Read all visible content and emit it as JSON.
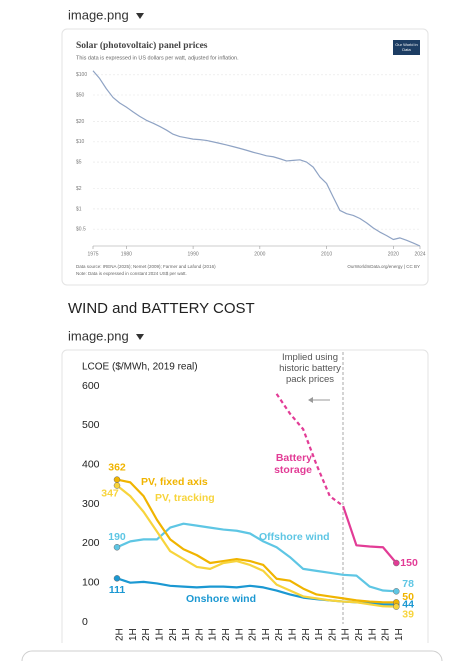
{
  "heading": "WIND and BATTERY COST",
  "attachments": [
    {
      "label": "image.png",
      "chart_data": {
        "type": "line",
        "title": "Solar (photovoltaic) panel prices",
        "subtitle": "This data is expressed in US dollars per watt, adjusted for inflation.",
        "logo": "Our World in Data",
        "source": "Data source: IRENA (2025); Nemet (2009); Farmer and Lafond (2016)",
        "credit": "OurWorldInData.org/energy | CC BY",
        "note": "Note: Data is expressed in constant 2024 US$ per watt.",
        "color": "#8fa3c4",
        "x": [
          1975,
          1976,
          1977,
          1978,
          1979,
          1980,
          1981,
          1982,
          1983,
          1984,
          1985,
          1986,
          1987,
          1988,
          1989,
          1990,
          1991,
          1992,
          1993,
          1994,
          1995,
          1996,
          1997,
          1998,
          1999,
          2000,
          2001,
          2002,
          2003,
          2004,
          2005,
          2006,
          2007,
          2008,
          2009,
          2010,
          2011,
          2012,
          2013,
          2014,
          2015,
          2016,
          2017,
          2018,
          2019,
          2020,
          2021,
          2022,
          2023,
          2024
        ],
        "values": [
          115,
          88,
          62,
          46,
          38,
          33,
          28,
          24,
          21,
          19,
          17,
          15,
          13,
          12,
          11.5,
          11,
          10.8,
          10.5,
          10,
          9.5,
          9,
          8.5,
          8,
          7.5,
          7,
          6.6,
          6.2,
          6,
          5.6,
          5.2,
          5.3,
          5.4,
          5,
          4.2,
          3,
          2.4,
          1.5,
          0.95,
          0.85,
          0.8,
          0.72,
          0.62,
          0.52,
          0.45,
          0.4,
          0.35,
          0.37,
          0.34,
          0.31,
          0.28
        ],
        "xlim": [
          1975,
          2024
        ],
        "xticks": [
          1975,
          1980,
          1990,
          2000,
          2010,
          2020,
          2024
        ],
        "ylim": [
          0.28,
          118
        ],
        "ylog": true,
        "grid": true,
        "yticks": [
          {
            "value": 100,
            "label": "$100"
          },
          {
            "value": 50,
            "label": "$50"
          },
          {
            "value": 20,
            "label": "$20"
          },
          {
            "value": 10,
            "label": "$10"
          },
          {
            "value": 5,
            "label": "$5"
          },
          {
            "value": 2,
            "label": "$2"
          },
          {
            "value": 1,
            "label": "$1"
          },
          {
            "value": 0.5,
            "label": "$0.5"
          }
        ]
      }
    },
    {
      "label": "image.png",
      "chart_data": {
        "type": "line",
        "y_label": "LCOE ($/MWh,  2019 real)",
        "annotation": "Implied using historic battery pack prices",
        "categories": [
          "2H",
          "1H",
          "2H",
          "1H",
          "2H",
          "1H",
          "2H",
          "1H",
          "2H",
          "1H",
          "2H",
          "1H",
          "2H",
          "1H",
          "2H",
          "1H",
          "2H",
          "1H",
          "2H",
          "1H",
          "2H",
          "1H"
        ],
        "ylim": [
          0,
          600
        ],
        "yticks": [
          0,
          100,
          200,
          300,
          400,
          500,
          600
        ],
        "series": [
          {
            "name": "Battery storage",
            "color": "#e23c96",
            "values": [
              null,
              null,
              null,
              null,
              null,
              null,
              null,
              null,
              null,
              null,
              null,
              null,
              580,
              530,
              490,
              400,
              320,
              295,
              195,
              192,
              190,
              150
            ]
          },
          {
            "name": "Offshore wind",
            "color": "#5ec6e4",
            "values": [
              190,
              205,
              210,
              210,
              240,
              250,
              245,
              240,
              235,
              232,
              225,
              205,
              190,
              165,
              135,
              130,
              125,
              120,
              118,
              90,
              80,
              78
            ]
          },
          {
            "name": "Onshore wind",
            "color": "#1b98d2",
            "values": [
              111,
              100,
              102,
              98,
              92,
              90,
              88,
              90,
              90,
              88,
              92,
              88,
              80,
              70,
              62,
              58,
              55,
              52,
              50,
              48,
              45,
              44
            ]
          },
          {
            "name": "PV, fixed axis",
            "color": "#f0b400",
            "values": [
              362,
              355,
              320,
              260,
              210,
              185,
              170,
              150,
              155,
              160,
              155,
              145,
              110,
              105,
              85,
              70,
              65,
              60,
              55,
              52,
              50,
              50
            ]
          },
          {
            "name": "PV, tracking",
            "color": "#f7d43c",
            "values": [
              347,
              320,
              280,
              230,
              180,
              160,
              140,
              135,
              150,
              155,
              145,
              130,
              95,
              80,
              65,
              60,
              55,
              52,
              50,
              45,
              40,
              39
            ]
          }
        ]
      }
    }
  ]
}
